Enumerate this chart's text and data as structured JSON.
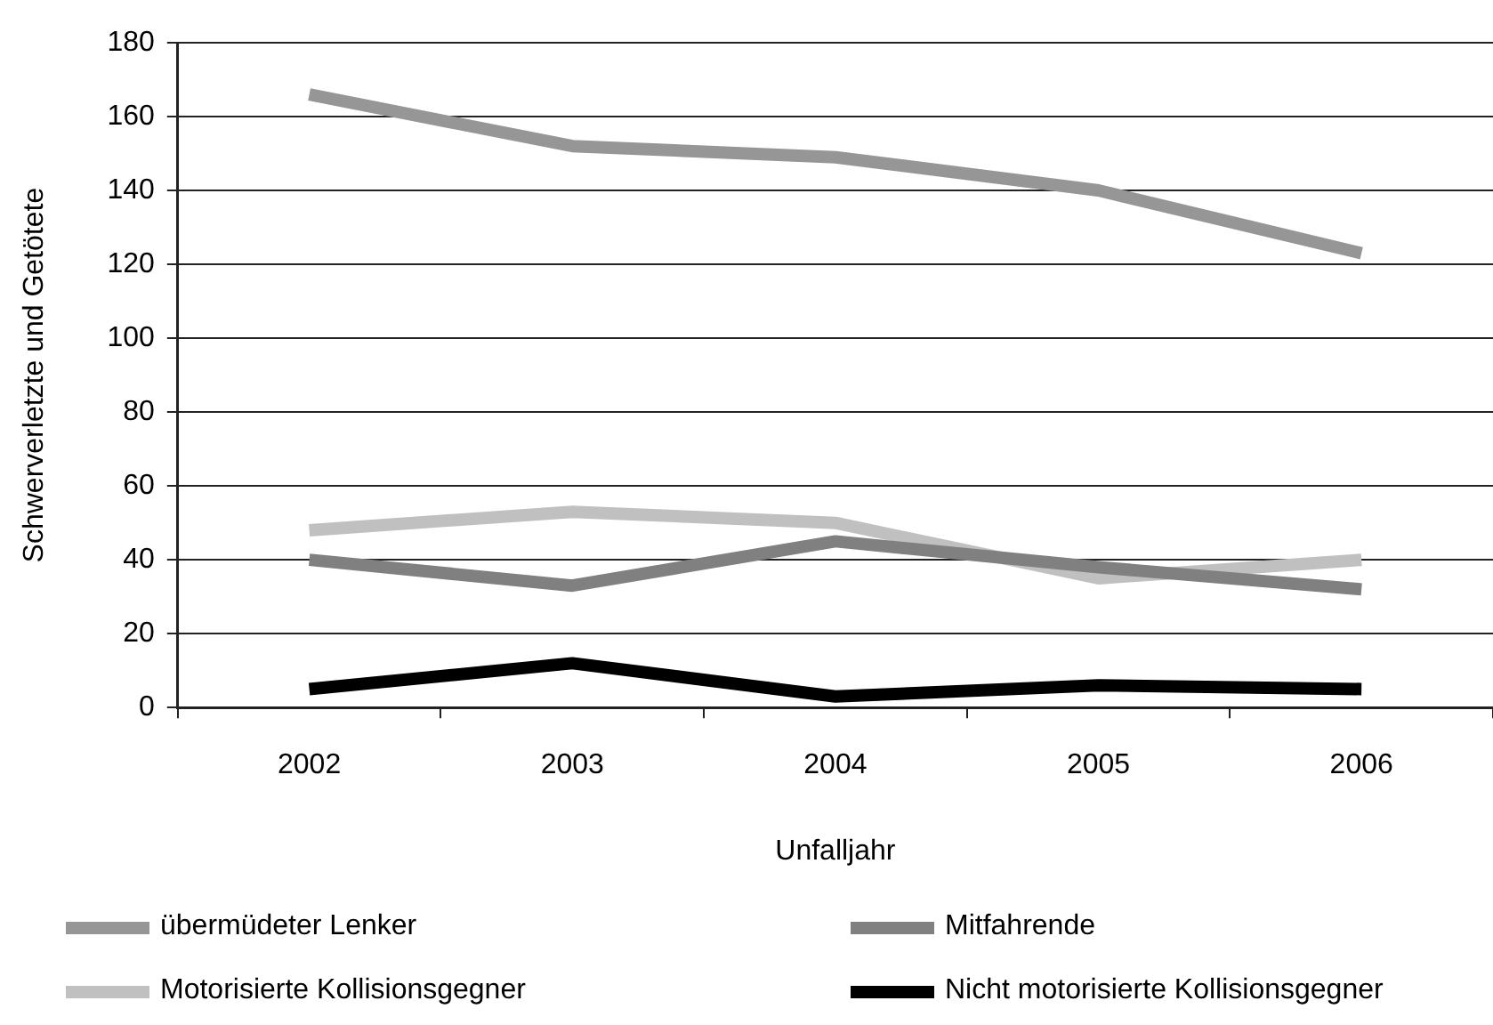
{
  "chart_data": {
    "type": "line",
    "xlabel": "Unfalljahr",
    "ylabel": "Schwerverletzte und Getötete",
    "categories": [
      "2002",
      "2003",
      "2004",
      "2005",
      "2006"
    ],
    "series": [
      {
        "name": "übermüdeter Lenker",
        "color": "#969696",
        "values": [
          166,
          152,
          149,
          140,
          123
        ]
      },
      {
        "name": "Mitfahrende",
        "color": "#808080",
        "values": [
          40,
          33,
          45,
          38,
          32
        ]
      },
      {
        "name": "Motorisierte Kollisionsgegner",
        "color": "#c0c0c0",
        "values": [
          48,
          53,
          50,
          35,
          40
        ]
      },
      {
        "name": "Nicht motorisierte Kollisionsgegner",
        "color": "#000000",
        "values": [
          5,
          12,
          3,
          6,
          5
        ]
      }
    ],
    "ylim": [
      0,
      180
    ],
    "yticks": [
      0,
      20,
      40,
      60,
      80,
      100,
      120,
      140,
      160,
      180
    ],
    "grid": "y",
    "legend": "bottom",
    "marker": "none",
    "line_style": "solid"
  }
}
